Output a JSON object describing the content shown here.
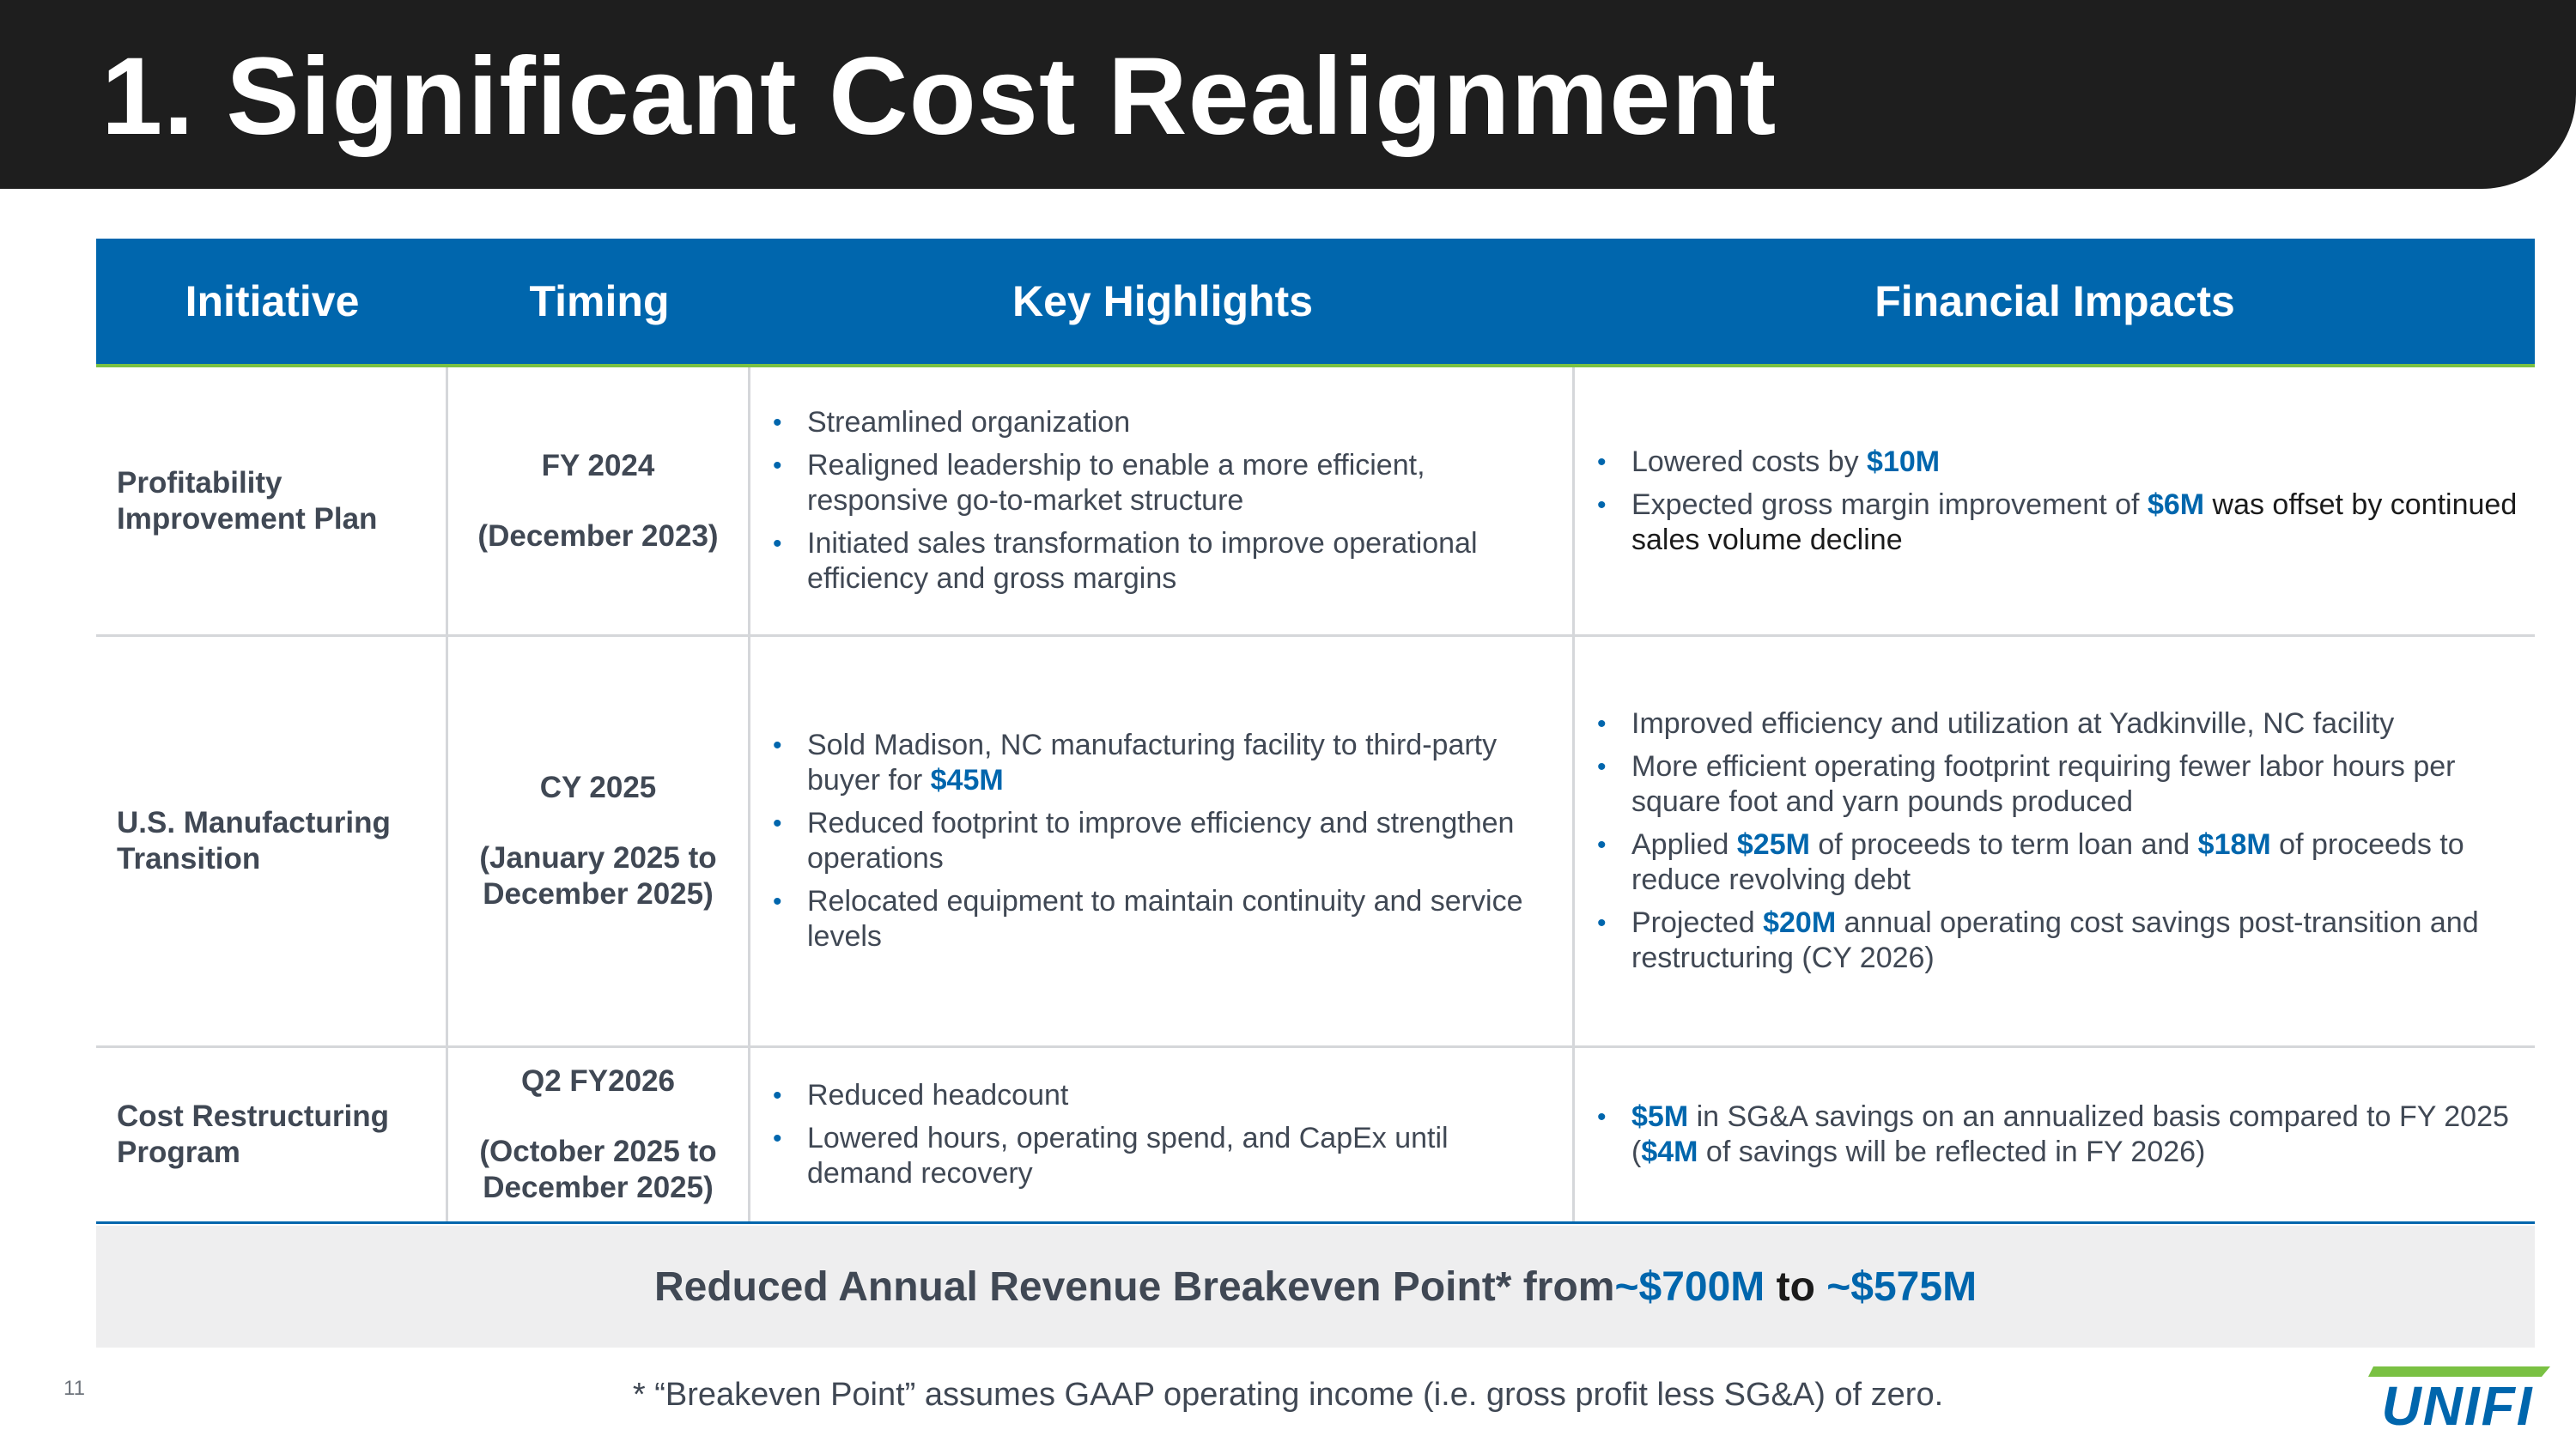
{
  "title": "1. Significant Cost Realignment",
  "table": {
    "headers": {
      "initiative": "Initiative",
      "timing": "Timing",
      "highlights": "Key Highlights",
      "impacts": "Financial Impacts"
    },
    "rows": [
      {
        "initiative": [
          "Profitability",
          "Improvement Plan"
        ],
        "timing_main": "FY 2024",
        "timing_detail": [
          "(December 2023)"
        ],
        "highlights": [
          "Streamlined organization",
          "Realigned leadership to enable a more efficient, responsive go-to-market structure",
          "Initiated sales transformation to improve operational efficiency and gross margins"
        ],
        "impacts": {
          "b1_pre": "Lowered costs by ",
          "b1_val": "$10M",
          "b2_pre": "Expected gross margin improvement of ",
          "b2_val": "$6M",
          "b2_post": " was offset by continued sales volume decline"
        }
      },
      {
        "initiative": [
          "U.S. Manufacturing",
          "Transition"
        ],
        "timing_main": "CY 2025",
        "timing_detail": [
          "(January 2025 to",
          "December 2025)"
        ],
        "highlights": {
          "b1_pre": "Sold Madison, NC manufacturing facility to third-party buyer for ",
          "b1_val": "$45M",
          "b2": "Reduced footprint to improve efficiency and strengthen operations",
          "b3": "Relocated equipment to maintain continuity and service levels"
        },
        "impacts": {
          "b1": "Improved efficiency and utilization at Yadkinville, NC facility",
          "b2": "More efficient operating footprint requiring fewer labor hours per square foot and yarn pounds produced",
          "b3_pre": "Applied ",
          "b3_val1": "$25M",
          "b3_mid": " of proceeds to term loan and ",
          "b3_val2": "$18M",
          "b3_post": " of proceeds to reduce revolving debt",
          "b4_pre": "Projected ",
          "b4_val": "$20M",
          "b4_post": " annual operating cost savings post-transition and restructuring (CY 2026)"
        }
      },
      {
        "initiative": [
          "Cost Restructuring",
          "Program"
        ],
        "timing_main": "Q2 FY2026",
        "timing_detail": [
          "(October 2025 to",
          "December 2025)"
        ],
        "highlights": [
          "Reduced headcount",
          "Lowered hours, operating spend, and CapEx until demand recovery"
        ],
        "impacts": {
          "b1_val1": "$5M",
          "b1_mid": " in SG&A savings on an annualized basis compared to FY 2025 (",
          "b1_val2": "$4M",
          "b1_post": " of savings will be reflected in FY 2026)"
        }
      }
    ]
  },
  "banner": {
    "prefix": "Reduced Annual Revenue Breakeven Point* from ",
    "from_value": "~$700M",
    "connector": " to ",
    "to_value": "~$575M"
  },
  "footnote": "* “Breakeven Point” assumes GAAP operating income (i.e. gross profit less SG&A) of zero.",
  "page_number": "11",
  "logo_text": "UNIFI",
  "colors": {
    "title_bar": "#1e1e1e",
    "header_blue": "#0066ad",
    "accent_green": "#7ac143",
    "highlight_blue": "#0066ad",
    "banner_bg": "#eeeeef"
  }
}
